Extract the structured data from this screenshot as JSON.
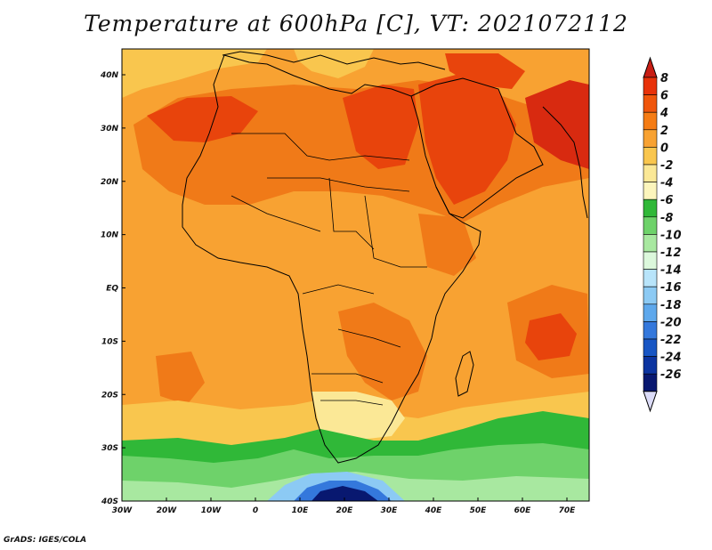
{
  "title": "Temperature at 600hPa [C], VT: 2021072112",
  "credit": "GrADS: IGES/COLA",
  "axes": {
    "lon_ticks": [
      "30W",
      "20W",
      "10W",
      "0",
      "10E",
      "20E",
      "30E",
      "40E",
      "50E",
      "60E",
      "70E"
    ],
    "lat_ticks": [
      "40N",
      "30N",
      "20N",
      "10N",
      "EQ",
      "10S",
      "20S",
      "30S",
      "40S"
    ]
  },
  "colorbar": {
    "labels": [
      "8",
      "6",
      "4",
      "2",
      "0",
      "-2",
      "-4",
      "-6",
      "-8",
      "-10",
      "-12",
      "-14",
      "-16",
      "-18",
      "-20",
      "-22",
      "-24",
      "-26"
    ],
    "colors": [
      "#c81e14",
      "#e8320a",
      "#f0560c",
      "#f57c14",
      "#f8a232",
      "#f9c64e",
      "#fbe896",
      "#fcf5bc",
      "#30b838",
      "#6ed26a",
      "#a8e8a0",
      "#dcf8dc",
      "#b8e4fa",
      "#8ccaf4",
      "#5ea8ec",
      "#3478dc",
      "#1856c4",
      "#0c34a0",
      "#081870",
      "#dcdcf8"
    ]
  },
  "field": {
    "background_color": "#f8a232",
    "region_colors": {
      "warm_4_6": "#f07a18",
      "warm_6_8": "#e8440c",
      "hot_8": "#d82a10",
      "mild_0_2": "#f9c64e",
      "cool_m2_0": "#fbe896",
      "green_m6": "#30b838",
      "green_m8": "#6ed26a",
      "green_m10": "#a8e8a0",
      "blue_m14": "#8ccaf4",
      "blue_m18": "#3478dc",
      "blue_m24": "#081870"
    }
  }
}
